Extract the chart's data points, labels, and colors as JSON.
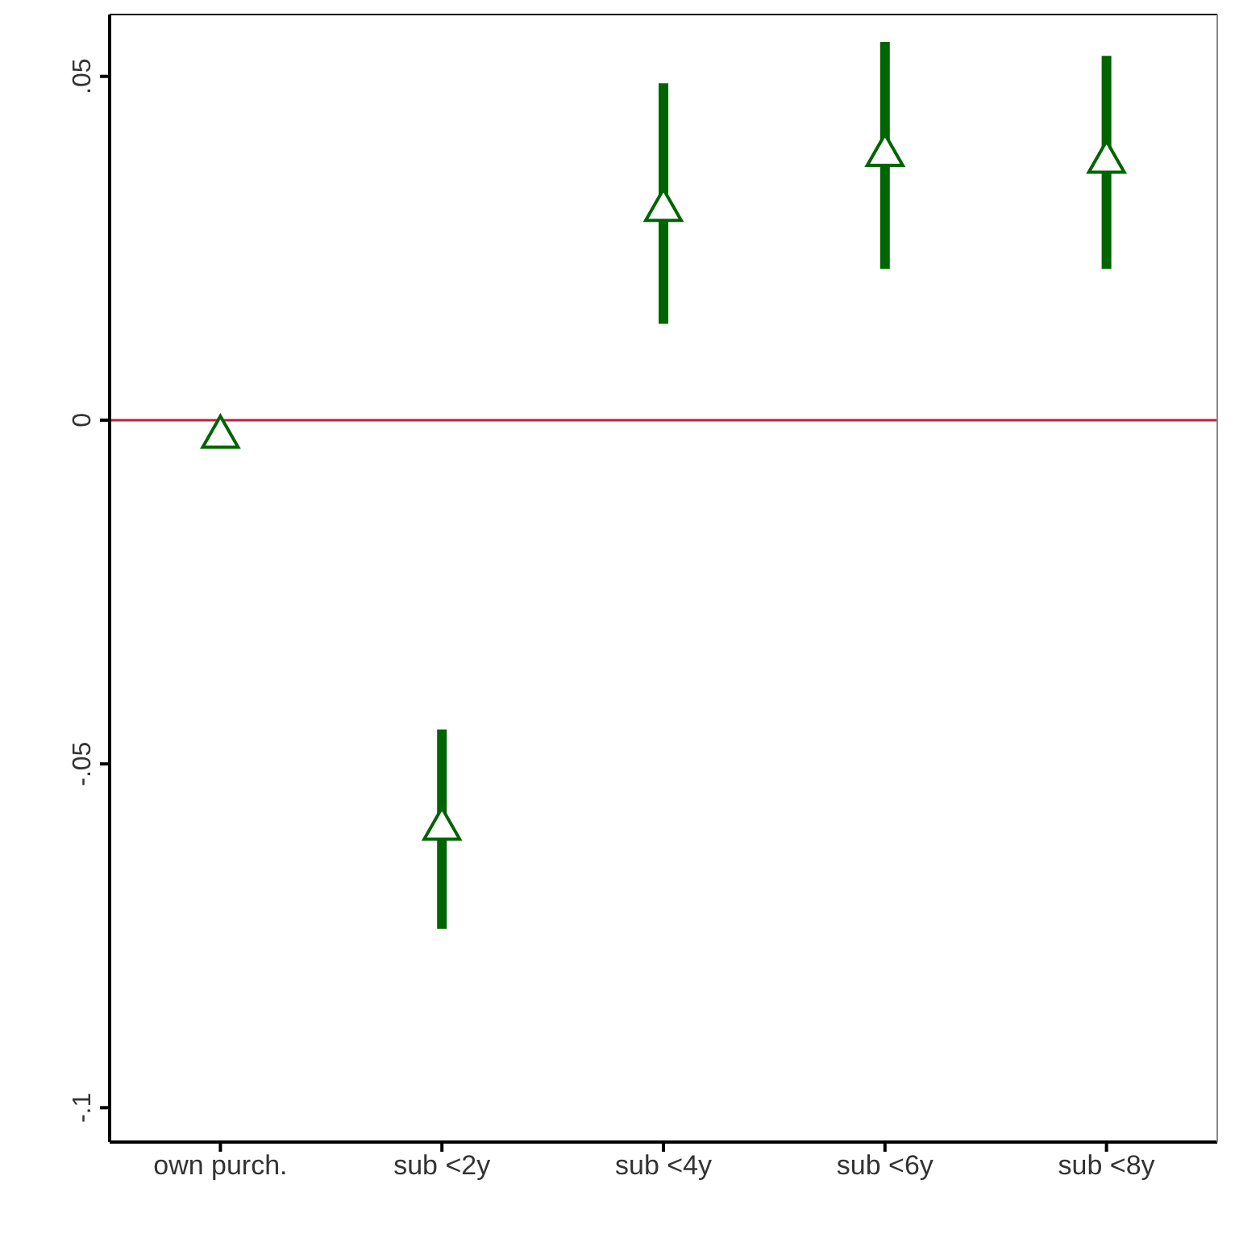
{
  "chart_data": {
    "type": "scatter",
    "categories": [
      "own purch.",
      "sub <2y",
      "sub <4y",
      "sub <6y",
      "sub <8y"
    ],
    "series": [
      {
        "color": "#006400",
        "values": [
          -0.002,
          -0.059,
          0.031,
          0.039,
          0.038
        ],
        "errors": [
          null,
          [
            -0.074,
            -0.045
          ],
          [
            0.014,
            0.049
          ],
          [
            0.022,
            0.055
          ],
          [
            0.022,
            0.053
          ]
        ]
      }
    ],
    "marker": "triangle",
    "ylim": [
      -0.105,
      0.059
    ],
    "yticks": [
      {
        "value": -0.1,
        "label": "-.1"
      },
      {
        "value": -0.05,
        "label": "-.05"
      },
      {
        "value": 0,
        "label": "0"
      },
      {
        "value": 0.05,
        "label": ".05"
      }
    ],
    "ref_lines": [
      {
        "axis": "y",
        "value": 0,
        "color": "#c0203a"
      }
    ],
    "grid": false
  }
}
